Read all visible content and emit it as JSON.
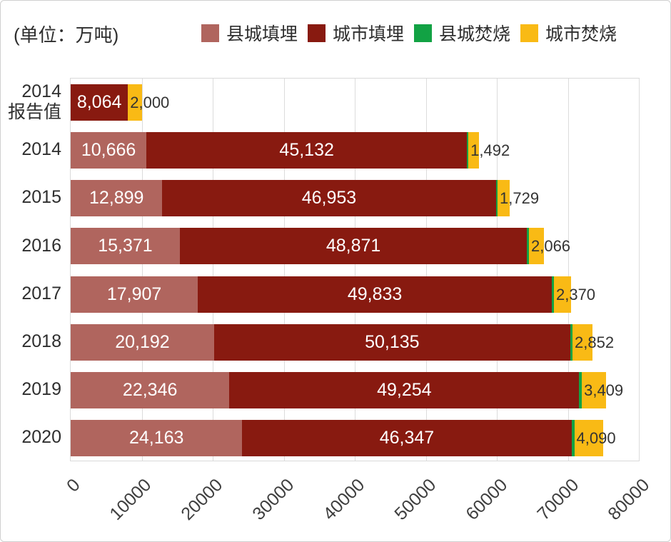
{
  "unit_label": "(单位：万吨)",
  "legend": [
    {
      "key": "county-landfill",
      "label": "县城填埋",
      "color": "#b0655e"
    },
    {
      "key": "city-landfill",
      "label": "城市填埋",
      "color": "#881a10"
    },
    {
      "key": "county-incineration",
      "label": "县城焚烧",
      "color": "#12a244"
    },
    {
      "key": "city-incineration",
      "label": "城市焚烧",
      "color": "#f9ba15"
    }
  ],
  "chart_data": {
    "type": "bar",
    "orientation": "horizontal",
    "stacked": true,
    "title": "",
    "xlabel": "",
    "ylabel": "",
    "xlim": [
      0,
      80000
    ],
    "xticks": [
      "0",
      "10000",
      "20000",
      "30000",
      "40000",
      "50000",
      "60000",
      "70000",
      "80000"
    ],
    "grid": true,
    "legend_position": "top",
    "categories": [
      "2014\n报告值",
      "2014",
      "2015",
      "2016",
      "2017",
      "2018",
      "2019",
      "2020"
    ],
    "series": [
      {
        "key": "county-landfill",
        "name": "县城填埋",
        "color": "#b0655e",
        "label_style": "inside-white",
        "values": [
          0,
          10666,
          12899,
          15371,
          17907,
          20192,
          22346,
          24163
        ],
        "labels": [
          "",
          "10,666",
          "12,899",
          "15,371",
          "17,907",
          "20,192",
          "22,346",
          "24,163"
        ]
      },
      {
        "key": "city-landfill",
        "name": "城市填埋",
        "color": "#881a10",
        "label_style": "inside-white",
        "values": [
          8064,
          45132,
          46953,
          48871,
          49833,
          50135,
          49254,
          46347
        ],
        "labels": [
          "8,064",
          "45,132",
          "46,953",
          "48,871",
          "49,833",
          "50,135",
          "49,254",
          "46,347"
        ]
      },
      {
        "key": "county-incineration",
        "name": "县城焚烧",
        "color": "#12a244",
        "label_style": "none",
        "values": [
          0,
          200,
          250,
          280,
          300,
          330,
          370,
          400
        ],
        "labels": [
          "",
          "",
          "",
          "",
          "",
          "",
          "",
          ""
        ]
      },
      {
        "key": "city-incineration",
        "name": "城市焚烧",
        "color": "#f9ba15",
        "label_style": "outside-dark",
        "values": [
          2000,
          1492,
          1729,
          2066,
          2370,
          2852,
          3409,
          4090
        ],
        "labels": [
          "2,000",
          "1,492",
          "1,729",
          "2,066",
          "2,370",
          "2,852",
          "3,409",
          "4,090"
        ]
      }
    ]
  }
}
